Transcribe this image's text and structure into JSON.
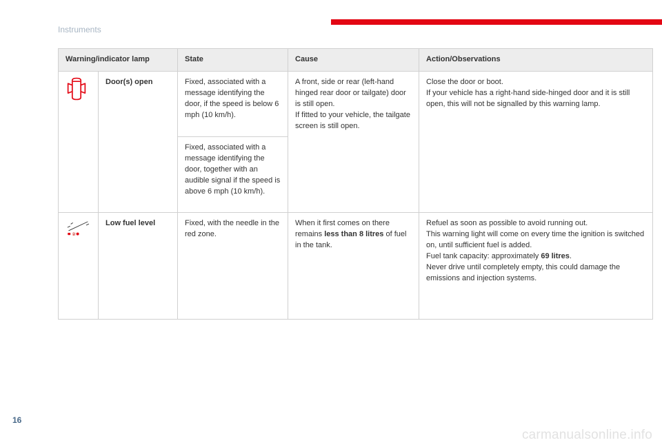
{
  "section_title": "Instruments",
  "page_number": "16",
  "watermark": "carmanualsonline.info",
  "accent_color": "#e30613",
  "headers": {
    "lamp": "Warning/indicator lamp",
    "state": "State",
    "cause": "Cause",
    "action": "Action/Observations"
  },
  "rows": [
    {
      "icon": "door-open-icon",
      "name": "Door(s) open",
      "states": [
        "Fixed, associated with a message identifying the door, if the speed is below 6 mph (10 km/h).",
        "Fixed, associated with a message identifying the door, together with an audible signal if the speed is above 6 mph (10 km/h)."
      ],
      "cause": "A front, side or rear (left-hand hinged rear door or tailgate) door is still open.\nIf fitted to your vehicle, the tailgate screen is still open.",
      "action": "Close the door or boot.\nIf your vehicle has a right-hand side-hinged door and it is still open, this will not be signalled by this warning lamp."
    },
    {
      "icon": "low-fuel-icon",
      "name": "Low fuel level",
      "states": [
        "Fixed, with the needle in the red zone."
      ],
      "cause_pre": "When it first comes on there remains ",
      "cause_bold": "less than 8 litres",
      "cause_post": " of fuel in the tank.",
      "action_pre": "Refuel as soon as possible to avoid running out.\nThis warning light will come on every time the ignition is switched on, until sufficient fuel is added.\nFuel tank capacity: approximately ",
      "action_bold": "69 litres",
      "action_post": ".\nNever drive until completely empty, this could damage the emissions and injection systems."
    }
  ],
  "table_style": {
    "border_color": "#d0d0d0",
    "header_bg": "#ededed",
    "font_size": 11,
    "text_color": "#333333"
  }
}
